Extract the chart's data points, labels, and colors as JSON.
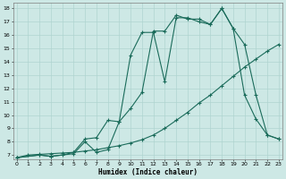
{
  "title": "",
  "xlabel": "Humidex (Indice chaleur)",
  "bg_color": "#cde8e5",
  "grid_color": "#afd4d0",
  "line_color": "#1a6b5a",
  "line1_x": [
    0,
    1,
    2,
    3,
    4,
    5,
    6,
    7,
    8,
    9,
    10,
    11,
    12,
    13,
    14,
    15,
    16,
    17,
    18,
    19,
    20,
    21,
    22,
    23
  ],
  "line1_y": [
    6.8,
    7.0,
    7.05,
    7.1,
    7.15,
    7.2,
    7.3,
    7.4,
    7.55,
    7.7,
    7.9,
    8.15,
    8.5,
    9.0,
    9.6,
    10.2,
    10.9,
    11.5,
    12.2,
    12.9,
    13.6,
    14.2,
    14.8,
    15.3
  ],
  "line2_x": [
    0,
    2,
    3,
    4,
    5,
    6,
    7,
    8,
    9,
    10,
    11,
    12,
    13,
    14,
    15,
    16,
    17,
    18,
    19,
    20,
    21,
    22,
    23
  ],
  "line2_y": [
    6.8,
    7.0,
    6.9,
    7.0,
    7.2,
    8.2,
    8.3,
    9.6,
    9.5,
    10.5,
    11.7,
    16.3,
    16.3,
    17.5,
    17.2,
    17.2,
    16.8,
    18.0,
    16.5,
    11.5,
    9.7,
    8.5,
    8.2
  ],
  "line3_x": [
    0,
    2,
    3,
    5,
    6,
    7,
    8,
    9,
    10,
    11,
    12,
    13,
    14,
    15,
    16,
    17,
    18,
    19,
    20,
    21,
    22,
    23
  ],
  "line3_y": [
    6.8,
    7.0,
    6.9,
    7.1,
    8.0,
    7.2,
    7.4,
    9.5,
    14.5,
    16.2,
    16.2,
    12.5,
    17.3,
    17.3,
    17.0,
    16.8,
    18.0,
    16.5,
    15.3,
    11.5,
    8.5,
    8.2
  ],
  "xlim_min": -0.3,
  "xlim_max": 23.3,
  "ylim_min": 6.7,
  "ylim_max": 18.4
}
